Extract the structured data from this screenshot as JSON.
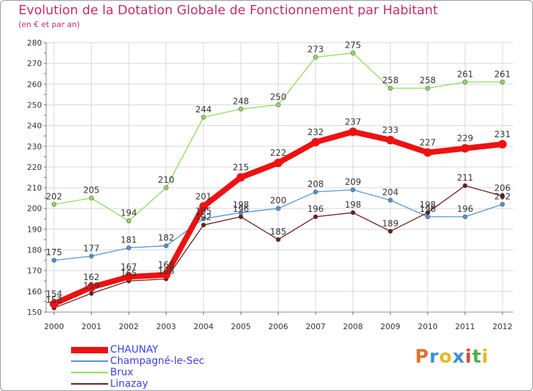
{
  "title": "Evolution de la Dotation Globale de Fonctionnement par Habitant",
  "subtitle": "(en € et par an)",
  "logo": {
    "text": "Proxiti",
    "letter_colors": [
      "#e8702a",
      "#3a8fd8",
      "#e8b820",
      "#3a8fd8",
      "#e8402a",
      "#4caf50",
      "#e8b820"
    ]
  },
  "chart_data": {
    "type": "line",
    "title": "Evolution de la Dotation Globale de Fonctionnement par Habitant",
    "subtitle": "(en € et par an)",
    "xlabel": "",
    "ylabel": "",
    "x": [
      2000,
      2001,
      2002,
      2003,
      2004,
      2005,
      2006,
      2007,
      2008,
      2009,
      2010,
      2011,
      2012
    ],
    "ylim": [
      150,
      280
    ],
    "yticks": [
      150,
      160,
      170,
      180,
      190,
      200,
      210,
      220,
      230,
      240,
      250,
      260,
      270,
      280
    ],
    "grid": true,
    "legend_position": "bottom-left",
    "series": [
      {
        "name": "CHAUNAY",
        "color": "#ee1111",
        "values": [
          154,
          162,
          167,
          168,
          201,
          215,
          222,
          232,
          237,
          233,
          227,
          229,
          231
        ]
      },
      {
        "name": "Champagné-le-Sec",
        "color": "#4f93d8",
        "values": [
          175,
          177,
          181,
          182,
          195,
          198,
          200,
          208,
          209,
          204,
          196,
          196,
          202
        ]
      },
      {
        "name": "Brux",
        "color": "#8ddc5a",
        "values": [
          202,
          205,
          194,
          210,
          244,
          248,
          250,
          273,
          275,
          258,
          258,
          261,
          261
        ]
      },
      {
        "name": "Linazay",
        "color": "#6b1a1a",
        "values": [
          152,
          159,
          165,
          166,
          192,
          196,
          185,
          196,
          198,
          189,
          198,
          211,
          206
        ]
      }
    ]
  }
}
